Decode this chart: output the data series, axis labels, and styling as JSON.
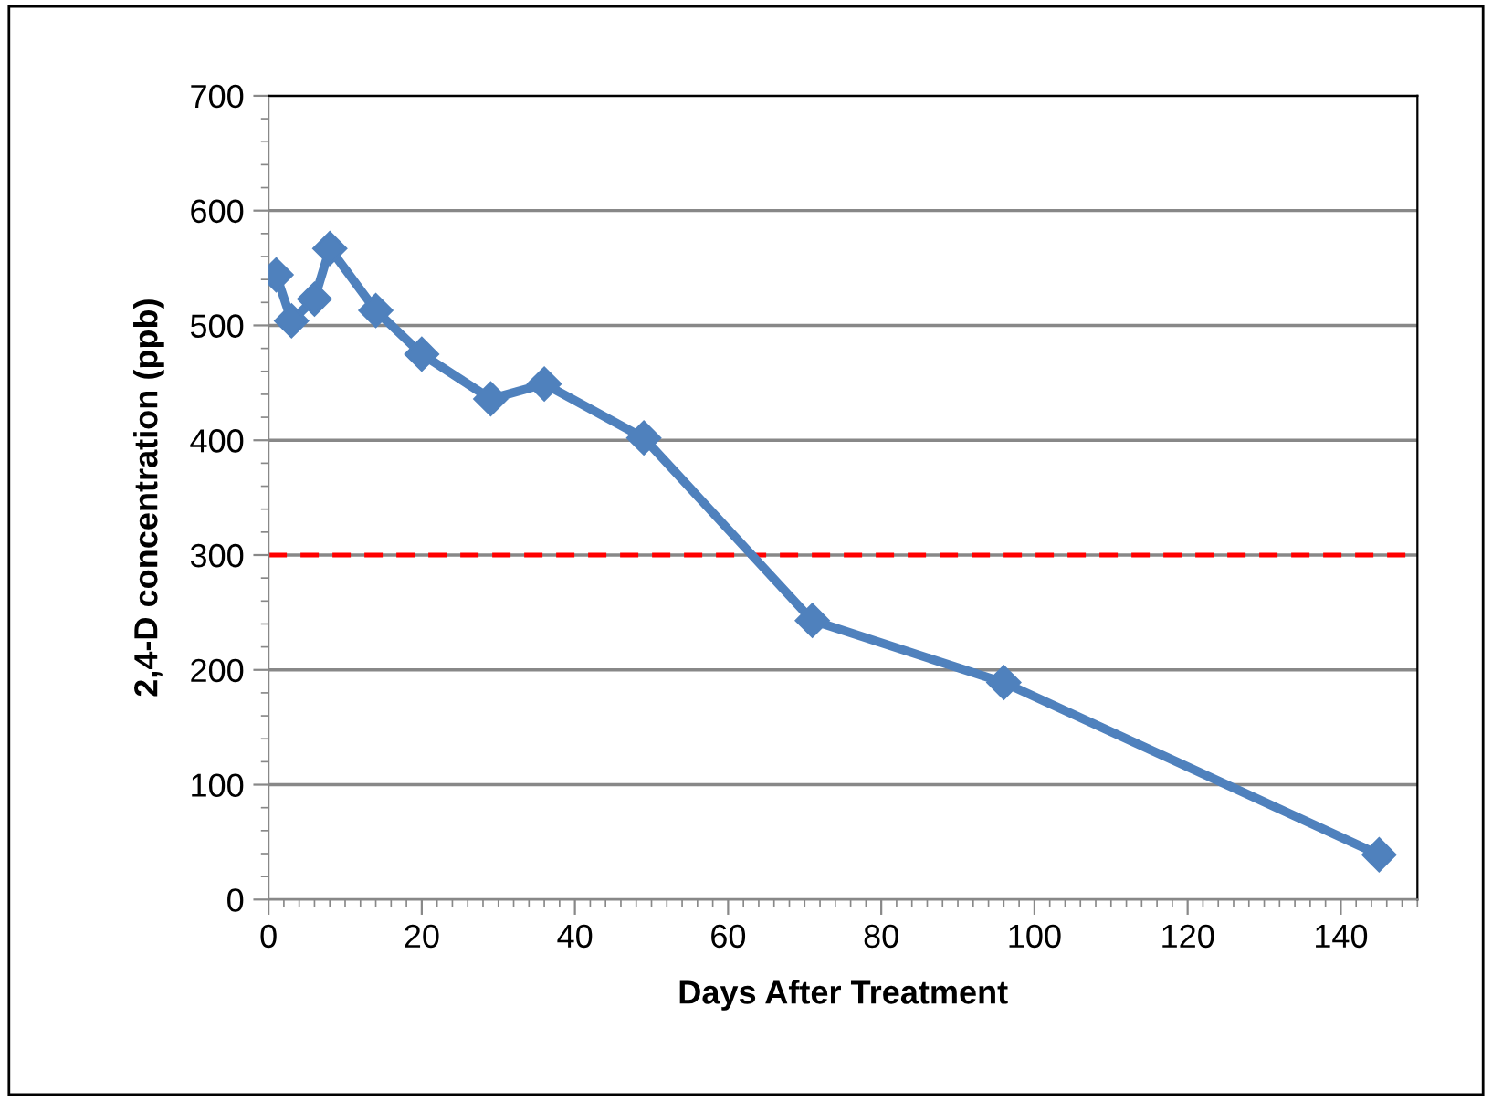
{
  "chart_data": {
    "type": "line",
    "xlabel": "Days After Treatment",
    "ylabel": "2,4-D concentration (ppb)",
    "x": [
      1,
      3,
      6,
      8,
      14,
      20,
      29,
      36,
      49,
      71,
      96,
      145
    ],
    "series": [
      {
        "color": "#4f81bd",
        "values": [
          544,
          504,
          523,
          567,
          513,
          475,
          436,
          449,
          402,
          243,
          189,
          39
        ]
      }
    ],
    "xlim": [
      0,
      150
    ],
    "xticks": [
      0,
      20,
      40,
      60,
      80,
      100,
      120,
      140
    ],
    "ylim": [
      0,
      700
    ],
    "yticks": [
      0,
      100,
      200,
      300,
      400,
      500,
      600,
      700
    ],
    "grid": "y",
    "marker": "diamond",
    "line_style": "solid",
    "legend": false,
    "ref_lines": [
      {
        "axis": "y",
        "value": 300,
        "color": "#ff0000",
        "line_style": "dashed"
      }
    ]
  }
}
